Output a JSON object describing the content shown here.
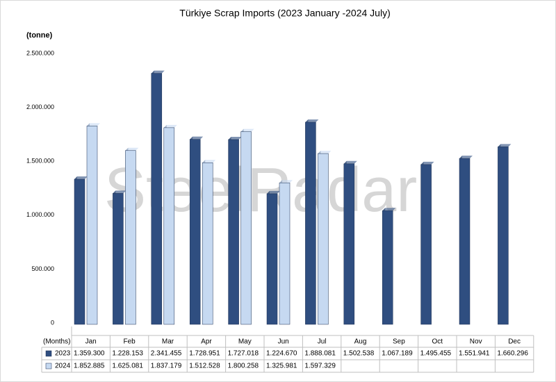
{
  "chart_data": {
    "type": "bar",
    "title": "Türkiye Scrap Imports  (2023 January -2024 July)",
    "y_axis_label": "(tonne)",
    "table_header": "(Months)",
    "watermark": "SteelRadar",
    "categories": [
      "Jan",
      "Feb",
      "Mar",
      "Apr",
      "May",
      "Jun",
      "Jul",
      "Aug",
      "Sep",
      "Oct",
      "Nov",
      "Dec"
    ],
    "series": [
      {
        "name": "2023",
        "color": "#2f4e80",
        "values": [
          1359300,
          1228153,
          2341455,
          1728951,
          1727018,
          1224670,
          1888081,
          1502538,
          1067189,
          1495455,
          1551941,
          1660296
        ],
        "value_labels": [
          "1.359.300",
          "1.228.153",
          "2.341.455",
          "1.728.951",
          "1.727.018",
          "1.224.670",
          "1.888.081",
          "1.502.538",
          "1.067.189",
          "1.495.455",
          "1.551.941",
          "1.660.296"
        ]
      },
      {
        "name": "2024",
        "color": "#c6d9f1",
        "values": [
          1852885,
          1625081,
          1837179,
          1512528,
          1800258,
          1325981,
          1597329,
          null,
          null,
          null,
          null,
          null
        ],
        "value_labels": [
          "1.852.885",
          "1.625.081",
          "1.837.179",
          "1.512.528",
          "1.800.258",
          "1.325.981",
          "1.597.329",
          null,
          null,
          null,
          null,
          null
        ]
      }
    ],
    "ylim": [
      0,
      2500000
    ],
    "yticks": [
      0,
      {
        "value": 500000,
        "label": "500.000"
      },
      {
        "value": 1000000,
        "label": "1.000.000"
      },
      {
        "value": 1500000,
        "label": "1.500.000"
      },
      {
        "value": 2000000,
        "label": "2.000.000"
      },
      {
        "value": 2500000,
        "label": "2.500.000"
      }
    ],
    "grid": false
  }
}
